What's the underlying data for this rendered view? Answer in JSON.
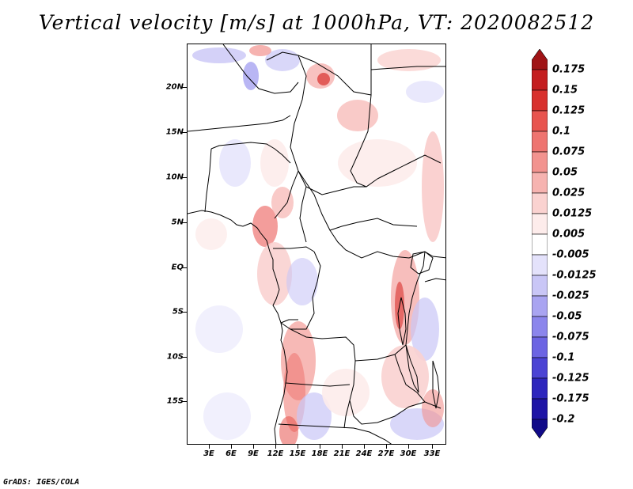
{
  "title": "Vertical velocity [m/s] at 1000hPa, VT: 2020082512",
  "credit": "GrADS: IGES/COLA",
  "map": {
    "lat_labels": [
      "20N",
      "15N",
      "10N",
      "5N",
      "EQ",
      "5S",
      "10S",
      "15S"
    ],
    "lon_labels": [
      "3E",
      "6E",
      "9E",
      "12E",
      "15E",
      "18E",
      "21E",
      "24E",
      "27E",
      "30E",
      "33E"
    ],
    "colors": {
      "up": "#e8544f",
      "up_light": "#f6b3b0",
      "down": "#7b74e8",
      "down_light": "#c9c6f6",
      "border": "#000000"
    }
  },
  "colorbar": {
    "labels": [
      "0.175",
      "0.15",
      "0.125",
      "0.1",
      "0.075",
      "0.05",
      "0.025",
      "0.0125",
      "0.005",
      "-0.005",
      "-0.0125",
      "-0.025",
      "-0.05",
      "-0.075",
      "-0.1",
      "-0.125",
      "-0.175",
      "-0.2"
    ],
    "colors": [
      "#a01416",
      "#c41d1f",
      "#d8302d",
      "#e8544f",
      "#ee7470",
      "#f2938f",
      "#f6b3b0",
      "#fad2d0",
      "#fdeceb",
      "#ffffff",
      "#e4e2fb",
      "#c9c6f6",
      "#a9a4f1",
      "#8b85ec",
      "#6c64e3",
      "#4b43d4",
      "#2d25bd",
      "#1e14a6",
      "#110a88"
    ]
  }
}
